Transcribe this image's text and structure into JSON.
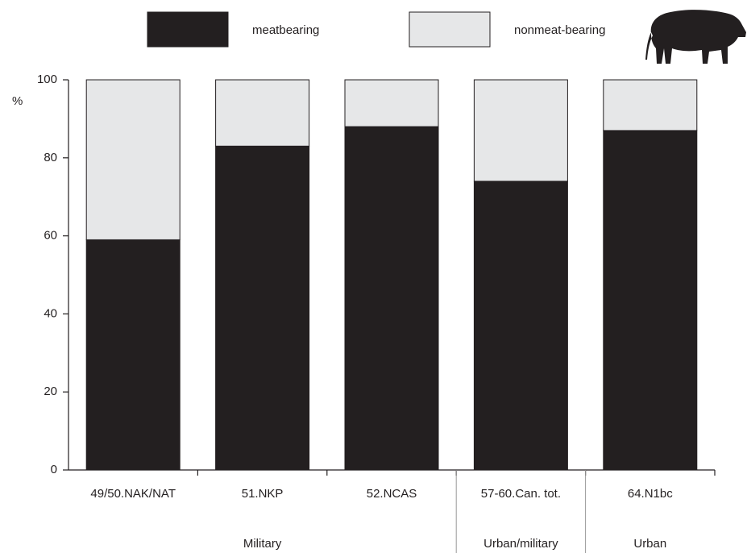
{
  "chart_data": {
    "type": "stacked_bar",
    "y_label": "%",
    "categories": [
      "49/50.NAK/NAT",
      "51.NKP",
      "52.NCAS",
      "57-60.Can. tot.",
      "64.N1bc"
    ],
    "category_groups": [
      "Military",
      "Military",
      "Military",
      "Urban/military",
      "Urban"
    ],
    "series": [
      {
        "name": "meatbearing",
        "color": "#231f20",
        "values": [
          59,
          83,
          88,
          74,
          87
        ]
      },
      {
        "name": "nonmeat-bearing",
        "color": "#e6e7e8",
        "values": [
          41,
          17,
          12,
          26,
          13
        ]
      }
    ],
    "ylim": [
      0,
      100
    ],
    "yticks": [
      0,
      20,
      40,
      60,
      80,
      100
    ],
    "grid": false
  }
}
